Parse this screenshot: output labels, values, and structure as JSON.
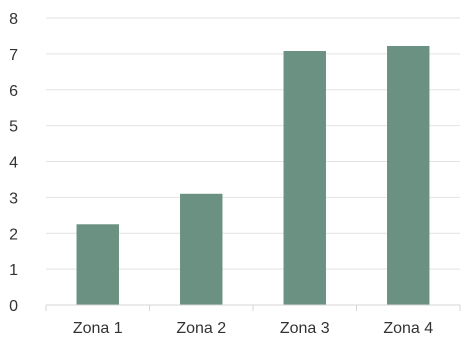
{
  "chart_data": {
    "type": "bar",
    "categories": [
      "Zona 1",
      "Zona 2",
      "Zona 3",
      "Zona 4"
    ],
    "values": [
      2.25,
      3.1,
      7.08,
      7.22
    ],
    "ylim": [
      0,
      8
    ],
    "yticks": [
      "0",
      "1",
      "2",
      "3",
      "4",
      "5",
      "6",
      "7",
      "8"
    ],
    "grid": true,
    "legend": "none",
    "bar_color": "#6a9182",
    "grid_color": "#e2e2e2",
    "axis_color": "#d6d6d6"
  }
}
